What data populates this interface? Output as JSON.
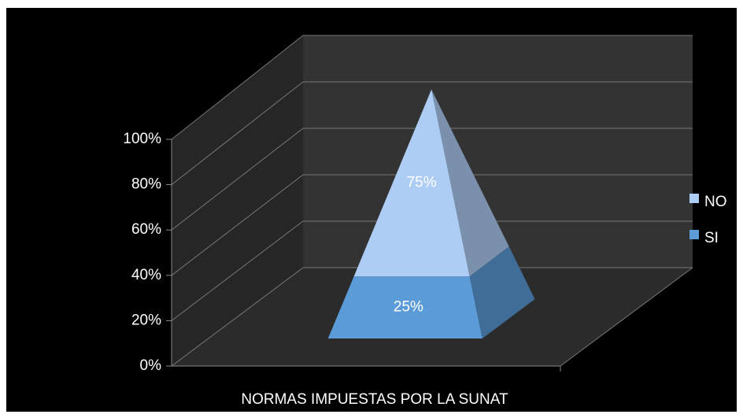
{
  "chart_data": {
    "type": "pyramid",
    "categories": [
      "NORMAS IMPUESTAS POR LA SUNAT"
    ],
    "series": [
      {
        "name": "SI",
        "color": "#5b9bd8",
        "values": [
          25
        ],
        "value_labels": [
          "25%"
        ]
      },
      {
        "name": "NO",
        "color": "#aecdf5",
        "values": [
          75
        ],
        "value_labels": [
          "75%"
        ]
      }
    ],
    "stacked": true,
    "ylim": [
      0,
      100
    ],
    "yticks": [
      {
        "value": 0,
        "label": "0%"
      },
      {
        "value": 20,
        "label": "20%"
      },
      {
        "value": 40,
        "label": "40%"
      },
      {
        "value": 60,
        "label": "60%"
      },
      {
        "value": 80,
        "label": "80%"
      },
      {
        "value": 100,
        "label": "100%"
      }
    ],
    "grid": true,
    "legend": "right"
  }
}
